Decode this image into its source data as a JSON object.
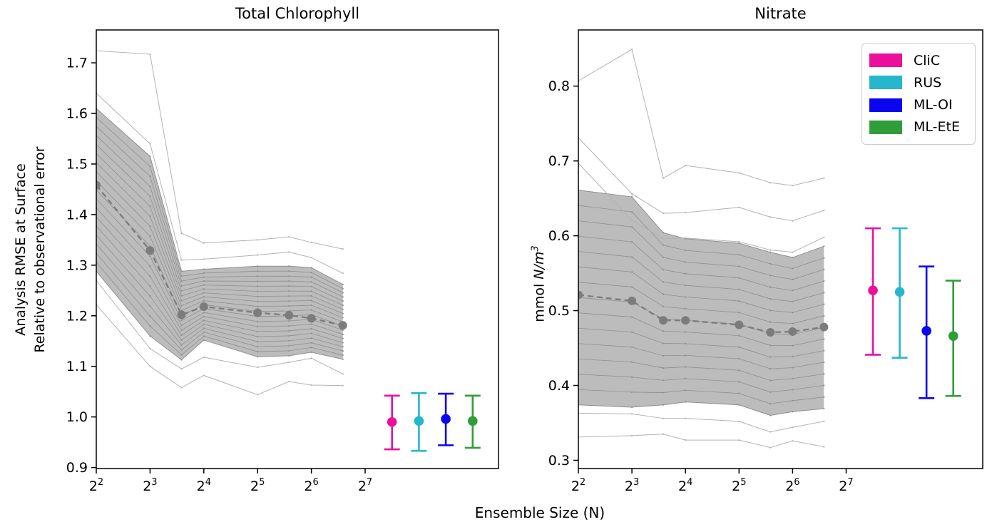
{
  "figure": {
    "xlabel": "Ensemble Size (N)",
    "background": "#ffffff"
  },
  "legend": {
    "items": [
      {
        "label": "CliC",
        "color": "#ec0f9b"
      },
      {
        "label": "RUS",
        "color": "#26b7cd"
      },
      {
        "label": "ML-OI",
        "color": "#0b04ef"
      },
      {
        "label": "ML-EtE",
        "color": "#2f9e38"
      }
    ]
  },
  "style_colors": {
    "band_fill": "#bcbcbc",
    "member_line": "#8f8f8f",
    "outlier_line": "#b2b2b2",
    "mean_line": "#7c7c7c",
    "spine": "#000000"
  },
  "chart_data": [
    {
      "type": "line",
      "title": "Total Chlorophyll",
      "ylabel_lines": [
        "Analysis RMSE at Surface",
        "Relative to observational error"
      ],
      "x_ensemble_sizes": [
        4,
        8,
        12,
        16,
        32,
        48,
        64,
        96
      ],
      "xtick_exponents": [
        2,
        3,
        4,
        5,
        6,
        7
      ],
      "xlim_log2": [
        2,
        9.48
      ],
      "ylim": [
        0.898,
        1.765
      ],
      "yticks": [
        0.9,
        1.0,
        1.1,
        1.2,
        1.3,
        1.4,
        1.5,
        1.6,
        1.7
      ],
      "grid": false,
      "ensemble": {
        "mean": [
          1.458,
          1.329,
          1.202,
          1.218,
          1.206,
          1.201,
          1.195,
          1.181
        ],
        "band_top": [
          1.61,
          1.515,
          1.288,
          1.292,
          1.298,
          1.298,
          1.295,
          1.262
        ],
        "band_bottom": [
          1.288,
          1.16,
          1.113,
          1.152,
          1.119,
          1.121,
          1.128,
          1.114
        ],
        "lines_above": [
          [
            1.724,
            1.717,
            1.363,
            1.344,
            1.35,
            1.356,
            1.345,
            1.332
          ],
          [
            1.64,
            1.54,
            1.31,
            1.312,
            1.32,
            1.326,
            1.315,
            1.284
          ]
        ],
        "lines_below": [
          [
            1.27,
            1.135,
            1.095,
            1.118,
            1.098,
            1.108,
            1.116,
            1.085
          ],
          [
            1.222,
            1.1,
            1.058,
            1.082,
            1.044,
            1.07,
            1.063,
            1.062
          ]
        ],
        "member_line_count": 17
      },
      "errorbars": [
        {
          "label": "CliC",
          "x_log2": 7.5,
          "low": 0.936,
          "mid": 0.99,
          "high": 1.042
        },
        {
          "label": "RUS",
          "x_log2": 8.0,
          "low": 0.933,
          "mid": 0.992,
          "high": 1.047
        },
        {
          "label": "ML-OI",
          "x_log2": 8.5,
          "low": 0.944,
          "mid": 0.996,
          "high": 1.046
        },
        {
          "label": "ML-EtE",
          "x_log2": 9.0,
          "low": 0.939,
          "mid": 0.992,
          "high": 1.042
        }
      ]
    },
    {
      "type": "line",
      "title": "Nitrate",
      "ylabel_prefix": "mmol ",
      "ylabel_math": "N/m",
      "ylabel_sup": "3",
      "x_ensemble_sizes": [
        4,
        8,
        12,
        16,
        32,
        48,
        64,
        96
      ],
      "xtick_exponents": [
        2,
        3,
        4,
        5,
        6,
        7
      ],
      "xlim_log2": [
        2,
        9.55
      ],
      "ylim": [
        0.289,
        0.875
      ],
      "yticks": [
        0.3,
        0.4,
        0.5,
        0.6,
        0.7,
        0.8
      ],
      "grid": false,
      "ensemble": {
        "mean": [
          0.521,
          0.513,
          0.487,
          0.487,
          0.481,
          0.471,
          0.472,
          0.478
        ],
        "band_top": [
          0.661,
          0.652,
          0.604,
          0.596,
          0.59,
          0.578,
          0.571,
          0.586
        ],
        "band_bottom": [
          0.374,
          0.371,
          0.374,
          0.378,
          0.374,
          0.36,
          0.365,
          0.369
        ],
        "lines_above": [
          [
            0.807,
            0.849,
            0.677,
            0.694,
            0.684,
            0.671,
            0.667,
            0.677
          ],
          [
            0.731,
            0.656,
            0.63,
            0.631,
            0.638,
            0.625,
            0.62,
            0.634
          ],
          [
            0.697,
            0.621,
            0.596,
            0.597,
            0.592,
            0.581,
            0.578,
            0.598
          ]
        ],
        "lines_below": [
          [
            0.363,
            0.362,
            0.356,
            0.356,
            0.352,
            0.338,
            0.344,
            0.352
          ],
          [
            0.331,
            0.333,
            0.335,
            0.327,
            0.327,
            0.317,
            0.326,
            0.318
          ]
        ],
        "member_line_count": 13
      },
      "errorbars": [
        {
          "label": "CliC",
          "x_log2": 7.5,
          "low": 0.441,
          "mid": 0.527,
          "high": 0.61
        },
        {
          "label": "RUS",
          "x_log2": 8.0,
          "low": 0.437,
          "mid": 0.525,
          "high": 0.61
        },
        {
          "label": "ML-OI",
          "x_log2": 8.5,
          "low": 0.383,
          "mid": 0.473,
          "high": 0.559
        },
        {
          "label": "ML-EtE",
          "x_log2": 9.0,
          "low": 0.386,
          "mid": 0.466,
          "high": 0.54
        }
      ]
    }
  ]
}
